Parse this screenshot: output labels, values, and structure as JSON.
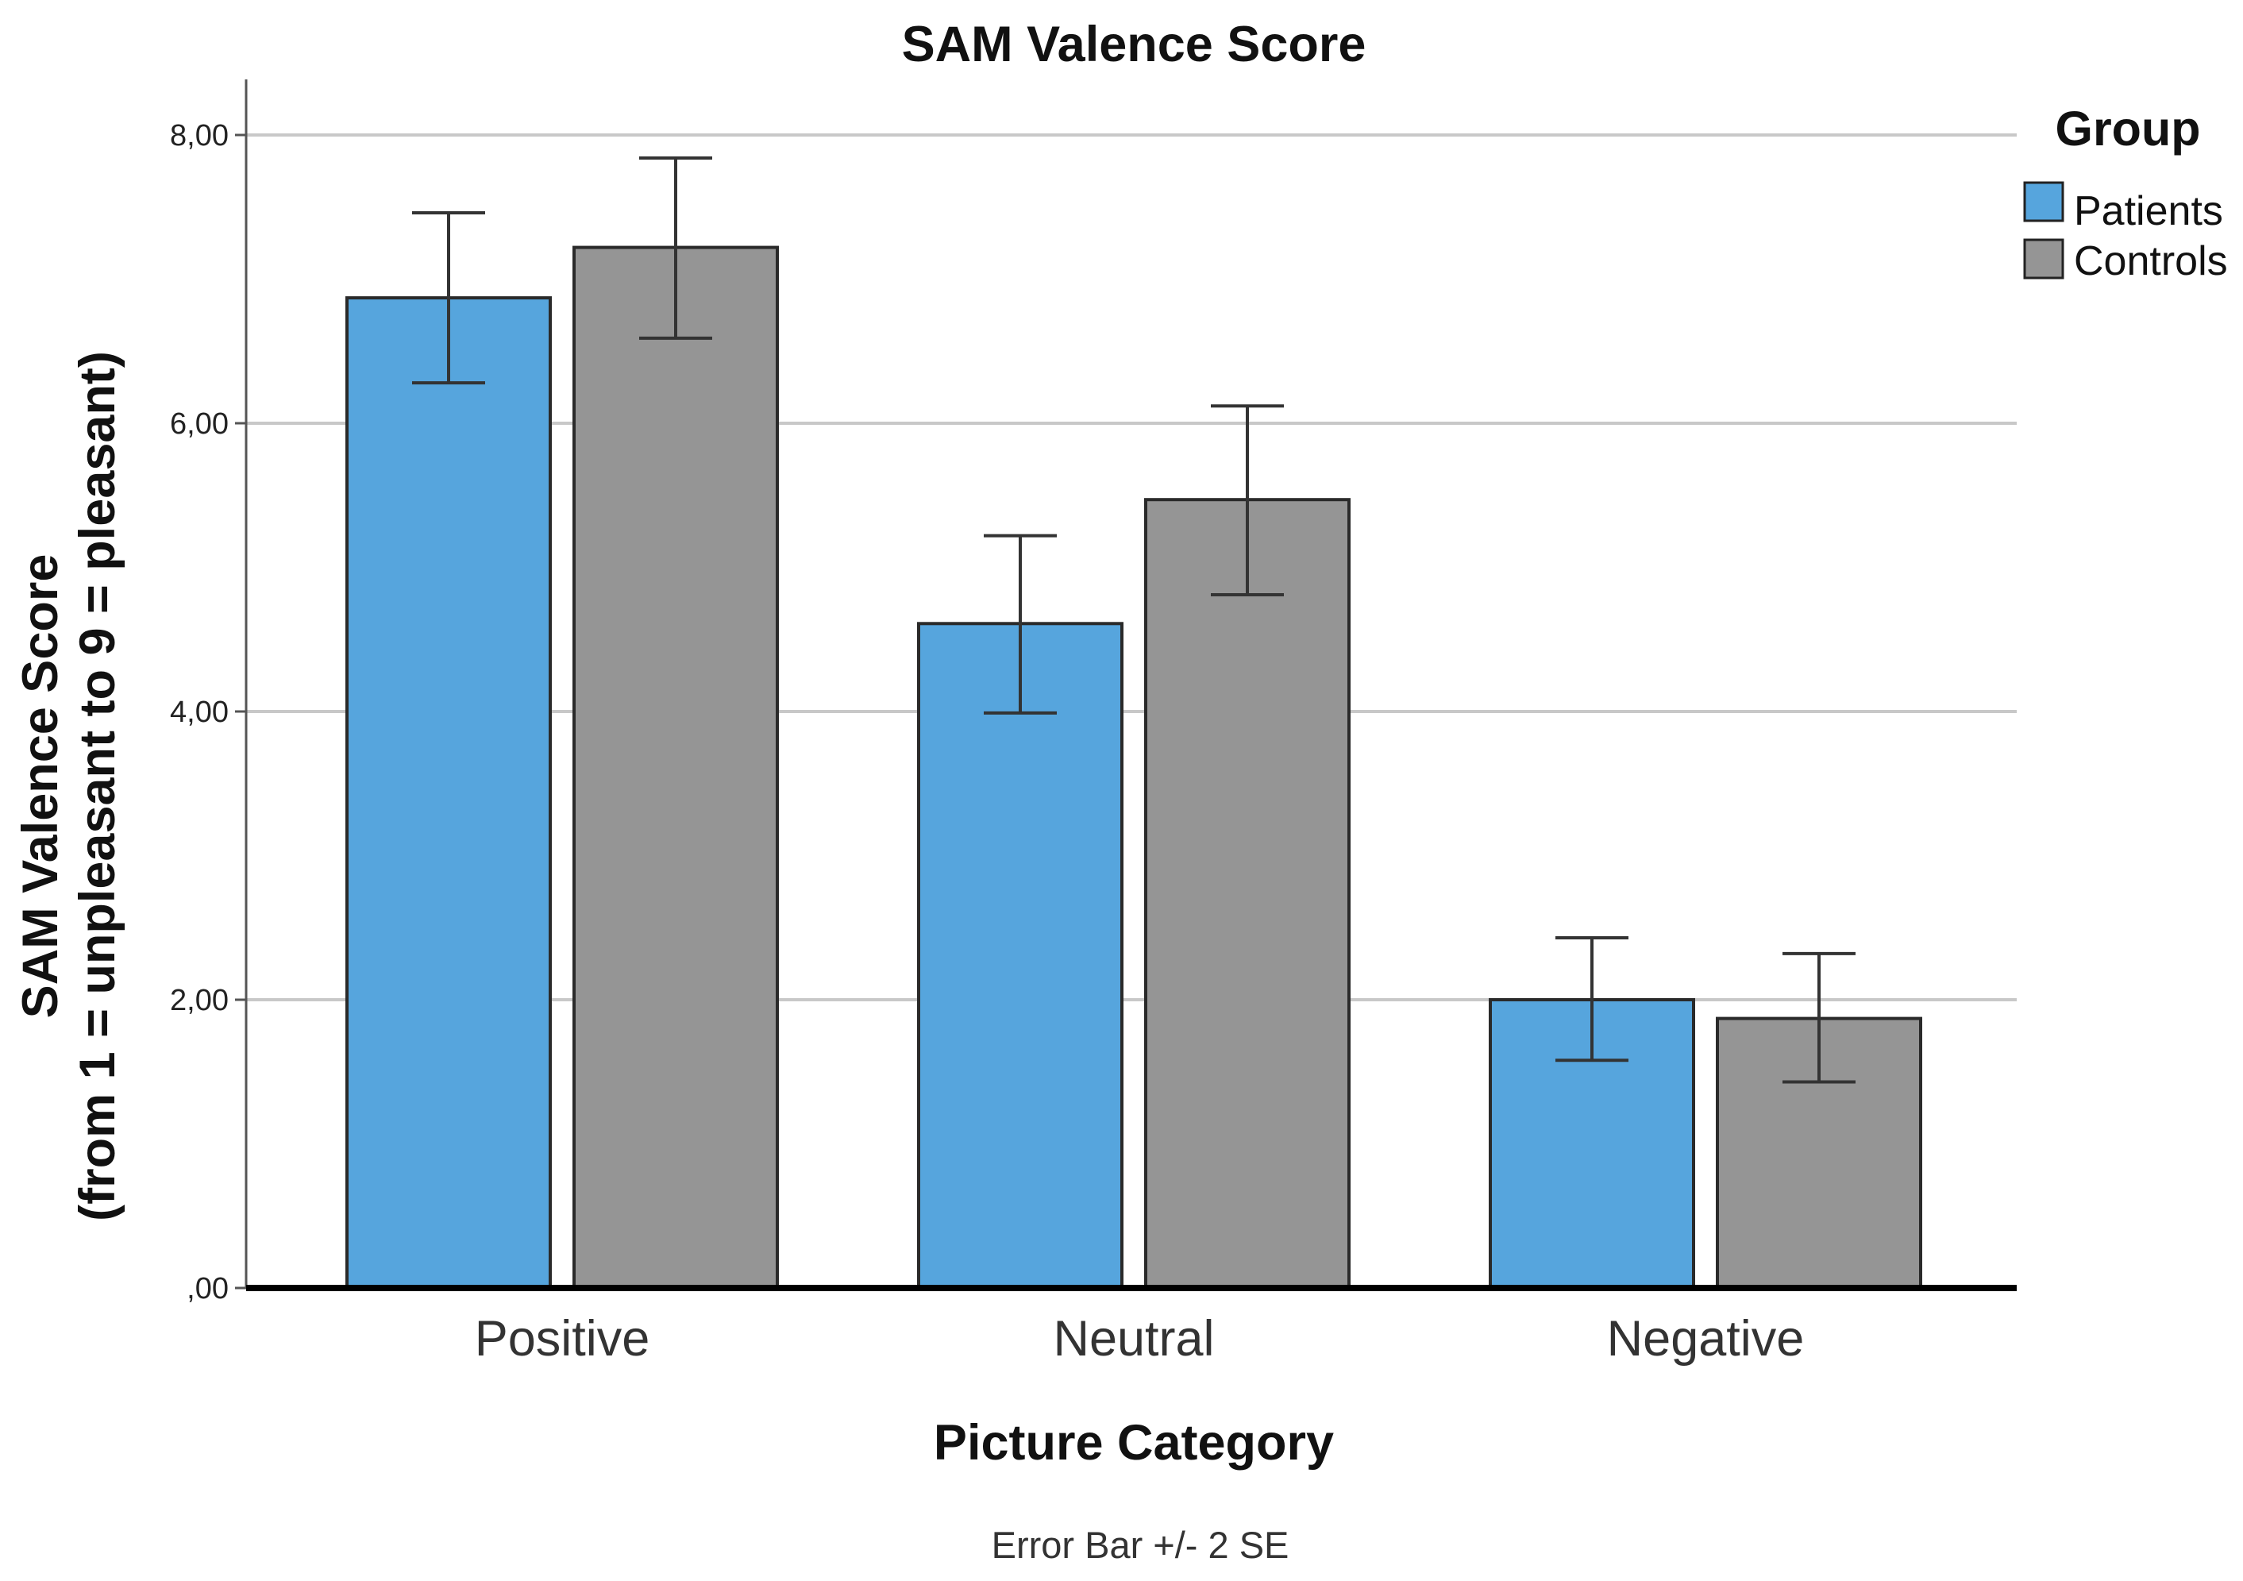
{
  "chart_data": {
    "type": "bar",
    "title": "SAM Valence Score",
    "xlabel": "Picture Category",
    "ylabel_lines": [
      "SAM Valence Score",
      "(from 1 = unpleasant to 9 = pleasant)"
    ],
    "categories": [
      "Positive",
      "Neutral",
      "Negative"
    ],
    "series": [
      {
        "name": "Patients",
        "color": "#56a5dd",
        "values": [
          6.87,
          4.61,
          2.0
        ],
        "error_low": [
          6.28,
          3.99,
          1.58
        ],
        "error_high": [
          7.46,
          5.22,
          2.43
        ]
      },
      {
        "name": "Controls",
        "color": "#959595",
        "values": [
          7.22,
          5.47,
          1.87
        ],
        "error_low": [
          6.59,
          4.81,
          1.43
        ],
        "error_high": [
          7.84,
          6.12,
          2.32
        ]
      }
    ],
    "ylim": [
      0,
      8.4
    ],
    "yticks": [
      0,
      2,
      4,
      6,
      8
    ],
    "ytick_labels": [
      ",00",
      "2,00",
      "4,00",
      "6,00",
      "8,00"
    ],
    "grid": true,
    "legend": {
      "title": "Group",
      "placement": "right"
    },
    "footnote": "Error Bar +/- 2 SE"
  }
}
